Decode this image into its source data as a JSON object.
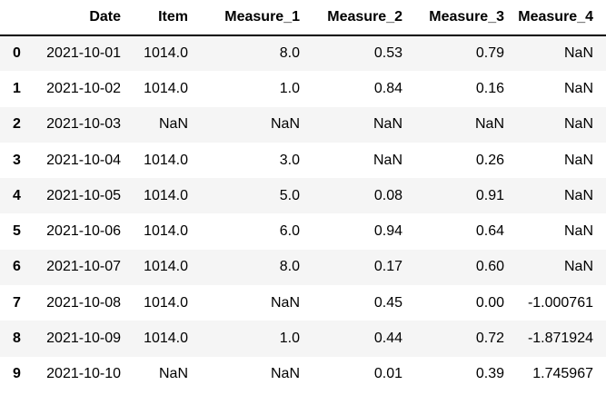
{
  "chart_data": {
    "type": "table",
    "title": "",
    "columns": [
      "",
      "Date",
      "Item",
      "Measure_1",
      "Measure_2",
      "Measure_3",
      "Measure_4"
    ],
    "rows": [
      {
        "index": "0",
        "cells": [
          "2021-10-01",
          "1014.0",
          "8.0",
          "0.53",
          "0.79",
          "NaN"
        ]
      },
      {
        "index": "1",
        "cells": [
          "2021-10-02",
          "1014.0",
          "1.0",
          "0.84",
          "0.16",
          "NaN"
        ]
      },
      {
        "index": "2",
        "cells": [
          "2021-10-03",
          "NaN",
          "NaN",
          "NaN",
          "NaN",
          "NaN"
        ]
      },
      {
        "index": "3",
        "cells": [
          "2021-10-04",
          "1014.0",
          "3.0",
          "NaN",
          "0.26",
          "NaN"
        ]
      },
      {
        "index": "4",
        "cells": [
          "2021-10-05",
          "1014.0",
          "5.0",
          "0.08",
          "0.91",
          "NaN"
        ]
      },
      {
        "index": "5",
        "cells": [
          "2021-10-06",
          "1014.0",
          "6.0",
          "0.94",
          "0.64",
          "NaN"
        ]
      },
      {
        "index": "6",
        "cells": [
          "2021-10-07",
          "1014.0",
          "8.0",
          "0.17",
          "0.60",
          "NaN"
        ]
      },
      {
        "index": "7",
        "cells": [
          "2021-10-08",
          "1014.0",
          "NaN",
          "0.45",
          "0.00",
          "-1.000761"
        ]
      },
      {
        "index": "8",
        "cells": [
          "2021-10-09",
          "1014.0",
          "1.0",
          "0.44",
          "0.72",
          "-1.871924"
        ]
      },
      {
        "index": "9",
        "cells": [
          "2021-10-10",
          "NaN",
          "NaN",
          "0.01",
          "0.39",
          "1.745967"
        ]
      }
    ],
    "layout": {
      "stripe_pattern": "odd-rows-shaded",
      "grid": false,
      "header_rule": true
    }
  },
  "colors": {
    "row_stripe": "#f5f5f5",
    "header_border": "#000000",
    "text": "#000000",
    "background": "#ffffff"
  }
}
